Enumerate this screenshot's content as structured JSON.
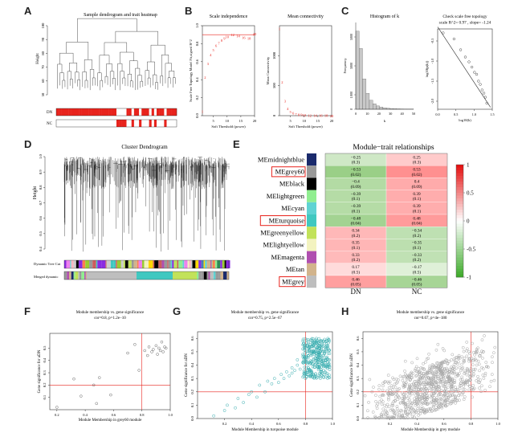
{
  "panel_labels": [
    "A",
    "B",
    "C",
    "D",
    "E",
    "F",
    "G",
    "H"
  ],
  "colors": {
    "red": "#e8231c",
    "green": "#6cb84b",
    "pink": "#f19999",
    "lightgreen": "#b7dea1",
    "teal": "#3aaeb0",
    "grey": "#8c8c8c",
    "black": "#111111"
  },
  "chart_data": [
    {
      "id": "A",
      "type": "dendrogram",
      "title": "Sample dendrogram and trait heatmap",
      "ylabel": "Height",
      "yticks": [
        "50",
        "60",
        "70",
        "80",
        "90",
        "100"
      ],
      "rows": [
        "DN",
        "NC"
      ],
      "dn_pattern": [
        1,
        1,
        1,
        1,
        1,
        1,
        1,
        1,
        1,
        1,
        1,
        1,
        1,
        1,
        1,
        1,
        1,
        1,
        1,
        1,
        1,
        1,
        1,
        1,
        0,
        0,
        0,
        0,
        1,
        1,
        0,
        1,
        1,
        0,
        1,
        1,
        1,
        0,
        1,
        0,
        1,
        1,
        1,
        0,
        1,
        1,
        1,
        1
      ]
    },
    {
      "id": "B1",
      "type": "scatter",
      "title": "Scale independence",
      "xlabel": "Soft Threshold (power)",
      "ylabel": "Scale Free Topology Model Fit,signed R^2",
      "xlim": [
        1,
        20
      ],
      "ylim": [
        0,
        1.0
      ],
      "xticks": [
        "5",
        "10",
        "15",
        "20"
      ],
      "yticks": [
        "0.0",
        "0.2",
        "0.4",
        "0.6",
        "0.8",
        "1.0"
      ],
      "cutoff": 0.9,
      "x": [
        1,
        2,
        3,
        4,
        5,
        6,
        7,
        8,
        9,
        10,
        12,
        14,
        16,
        18,
        20
      ],
      "y": [
        0.05,
        0.43,
        0.58,
        0.68,
        0.73,
        0.78,
        0.81,
        0.84,
        0.86,
        0.88,
        0.9,
        0.89,
        0.87,
        0.86,
        0.91
      ],
      "labels": [
        "1",
        "2",
        "3",
        "4",
        "5",
        "6",
        "7",
        "8",
        "9",
        "10",
        "12",
        "14",
        "16",
        "18",
        "20"
      ]
    },
    {
      "id": "B2",
      "type": "scatter",
      "title": "Mean connectivity",
      "xlabel": "Soft Threshold (power)",
      "ylabel": "Mean Connectivity",
      "xlim": [
        1,
        20
      ],
      "ylim": [
        0,
        1500
      ],
      "xticks": [
        "5",
        "10",
        "15",
        "20"
      ],
      "yticks": [
        "0",
        "500",
        "1000"
      ],
      "x": [
        1,
        2,
        3,
        4,
        5,
        6,
        7,
        8,
        9,
        10,
        12,
        14,
        16,
        18,
        20
      ],
      "y": [
        1450,
        560,
        250,
        120,
        70,
        45,
        30,
        22,
        17,
        13,
        9,
        7,
        5,
        4,
        3
      ],
      "labels": [
        "1",
        "2",
        "3",
        "4",
        "5",
        "6",
        "7",
        "8",
        "9",
        "10",
        "12",
        "14",
        "16",
        "18",
        "20"
      ]
    },
    {
      "id": "C1",
      "type": "bar",
      "title": "Histogram of k",
      "xlabel": "k",
      "ylabel": "Frequency",
      "ylim": [
        0,
        6000
      ],
      "xticks": [
        "0",
        "10",
        "20",
        "30",
        "40",
        "50"
      ],
      "yticks": [
        "0",
        "1000",
        "3000",
        "5000"
      ],
      "values": [
        5400,
        4200,
        2100,
        1100,
        620,
        380,
        230,
        150,
        100,
        70,
        50,
        40,
        30,
        25,
        20,
        15,
        12
      ]
    },
    {
      "id": "C2",
      "type": "scatter",
      "title": "Check scale free topology",
      "subtitle": "scale R^2= 0.97 , slope= -1.24",
      "xlabel": "log10(k)",
      "ylabel": "log10(p(k))",
      "xlim": [
        0.0,
        1.5
      ],
      "ylim": [
        -2.2,
        -0.2
      ],
      "xticks": [
        "0.0",
        "0.5",
        "1.0",
        "1.5"
      ],
      "yticks": [
        "-2.0",
        "-1.5",
        "-1.0",
        "-0.5"
      ],
      "x": [
        0.15,
        0.45,
        0.63,
        0.76,
        0.86,
        0.94,
        1.01,
        1.07,
        1.12,
        1.17,
        1.22,
        1.27,
        1.31,
        1.35
      ],
      "y": [
        -0.3,
        -0.45,
        -0.72,
        -0.9,
        -1.02,
        -1.15,
        -1.28,
        -1.33,
        -1.5,
        -1.58,
        -1.72,
        -1.8,
        -1.9,
        -2.05
      ]
    },
    {
      "id": "D",
      "type": "dendrogram",
      "title": "Cluster Dendrogram",
      "ylabel": "Height",
      "yticks": [
        "0.4",
        "0.5",
        "0.6",
        "0.7",
        "0.8",
        "0.9",
        "1.0"
      ],
      "rows": [
        "Dynamic Tree Cut",
        "Merged dynamic"
      ]
    },
    {
      "id": "E",
      "type": "heatmap",
      "title": "Module−trait relationships",
      "columns": [
        "DN",
        "NC"
      ],
      "legend_ticks": [
        "1",
        "0.5",
        "0",
        "-0.5",
        "-1"
      ],
      "highlighted": [
        "MEgrey60",
        "MEturquoise",
        "MEgrey"
      ],
      "rows": [
        {
          "name": "MEmidnightblue",
          "swatch": "#1a2a6c",
          "dn": "−0.25",
          "dn_p": "(0.3)",
          "nc": "0.25",
          "nc_p": "(0.3)",
          "dn_v": -0.25,
          "nc_v": 0.25
        },
        {
          "name": "MEgrey60",
          "swatch": "#999999",
          "dn": "−0.53",
          "dn_p": "(0.02)",
          "nc": "0.53",
          "nc_p": "(0.02)",
          "dn_v": -0.53,
          "nc_v": 0.53
        },
        {
          "name": "MEblack",
          "swatch": "#000000",
          "dn": "−0.4",
          "dn_p": "(0.09)",
          "nc": "0.4",
          "nc_p": "(0.09)",
          "dn_v": -0.4,
          "nc_v": 0.4
        },
        {
          "name": "MElightgreen",
          "swatch": "#90ee90",
          "dn": "−0.39",
          "dn_p": "(0.1)",
          "nc": "0.39",
          "nc_p": "(0.1)",
          "dn_v": -0.39,
          "nc_v": 0.39
        },
        {
          "name": "MEcyan",
          "swatch": "#5fd3d3",
          "dn": "−0.39",
          "dn_p": "(0.1)",
          "nc": "0.39",
          "nc_p": "(0.1)",
          "dn_v": -0.39,
          "nc_v": 0.39
        },
        {
          "name": "MEturquoise",
          "swatch": "#40c8c0",
          "dn": "−0.48",
          "dn_p": "(0.04)",
          "nc": "0.48",
          "nc_p": "(0.04)",
          "dn_v": -0.48,
          "nc_v": 0.48
        },
        {
          "name": "MEgreenyellow",
          "swatch": "#c2e25a",
          "dn": "0.34",
          "dn_p": "(0.2)",
          "nc": "−0.34",
          "nc_p": "(0.2)",
          "dn_v": 0.34,
          "nc_v": -0.34
        },
        {
          "name": "MElightyellow",
          "swatch": "#f3f3c0",
          "dn": "0.35",
          "dn_p": "(0.1)",
          "nc": "−0.35",
          "nc_p": "(0.1)",
          "dn_v": 0.35,
          "nc_v": -0.35
        },
        {
          "name": "MEmagenta",
          "swatch": "#b04fb0",
          "dn": "0.33",
          "dn_p": "(0.2)",
          "nc": "−0.33",
          "nc_p": "(0.2)",
          "dn_v": 0.33,
          "nc_v": -0.33
        },
        {
          "name": "MEtan",
          "swatch": "#d2b48c",
          "dn": "0.17",
          "dn_p": "(0.5)",
          "nc": "−0.17",
          "nc_p": "(0.5)",
          "dn_v": 0.17,
          "nc_v": -0.17
        },
        {
          "name": "MEgrey",
          "swatch": "#bebebe",
          "dn": "0.46",
          "dn_p": "(0.05)",
          "nc": "−0.46",
          "nc_p": "(0.05)",
          "dn_v": 0.46,
          "nc_v": -0.46
        }
      ]
    },
    {
      "id": "F",
      "type": "scatter",
      "title": "Module membership vs. gene significance",
      "subtitle": "cor=0.8, p=1.2e−10",
      "xlabel": "Module Membership in grey60 module",
      "ylabel": "Gene significance for aDN",
      "xlim": [
        0.15,
        1.0
      ],
      "ylim": [
        0.0,
        0.62
      ],
      "xticks": [
        "0.2",
        "0.4",
        "0.6",
        "0.8",
        "1.0"
      ],
      "yticks": [
        "0.1",
        "0.2",
        "0.3",
        "0.4",
        "0.5"
      ],
      "vline": 0.8,
      "hline": 0.2,
      "x": [
        0.2,
        0.32,
        0.37,
        0.46,
        0.48,
        0.5,
        0.58,
        0.7,
        0.75,
        0.78,
        0.82,
        0.84,
        0.85,
        0.87,
        0.88,
        0.9,
        0.91,
        0.92,
        0.93,
        0.94,
        0.95,
        0.96,
        0.97
      ],
      "y": [
        0.02,
        0.25,
        0.11,
        0.2,
        0.05,
        0.26,
        0.12,
        0.46,
        0.53,
        0.32,
        0.48,
        0.44,
        0.51,
        0.47,
        0.49,
        0.52,
        0.45,
        0.5,
        0.48,
        0.55,
        0.47,
        0.51,
        0.5
      ]
    },
    {
      "id": "G",
      "type": "scatter",
      "title": "Module membership vs. gene significance",
      "subtitle": "cor=0.75, p=2.5e−67",
      "xlabel": "Module Membership in turquoise module",
      "ylabel": "Gene significance for aDN",
      "xlim": [
        0.0,
        1.0
      ],
      "ylim": [
        0.0,
        0.65
      ],
      "xticks": [
        "0.2",
        "0.4",
        "0.6",
        "0.8",
        "1.0"
      ],
      "yticks": [
        "0.0",
        "0.1",
        "0.2",
        "0.3",
        "0.4",
        "0.5",
        "0.6"
      ],
      "vline": 0.8,
      "hline": 0.2,
      "x": [
        0.12,
        0.2,
        0.22,
        0.28,
        0.3,
        0.34,
        0.38,
        0.4,
        0.44,
        0.46,
        0.5,
        0.52,
        0.55,
        0.57,
        0.6,
        0.62,
        0.64,
        0.66,
        0.68,
        0.7,
        0.72,
        0.74,
        0.76,
        0.78,
        0.8,
        0.82,
        0.84,
        0.86,
        0.88,
        0.9,
        0.92,
        0.94,
        0.96,
        0.82,
        0.85,
        0.87,
        0.89,
        0.91,
        0.93,
        0.95,
        0.8,
        0.84,
        0.88,
        0.92,
        0.96,
        0.78,
        0.74,
        0.7
      ],
      "y": [
        0.02,
        0.06,
        0.1,
        0.08,
        0.15,
        0.12,
        0.18,
        0.2,
        0.16,
        0.25,
        0.2,
        0.28,
        0.26,
        0.3,
        0.27,
        0.33,
        0.3,
        0.35,
        0.32,
        0.38,
        0.36,
        0.4,
        0.37,
        0.42,
        0.45,
        0.47,
        0.5,
        0.44,
        0.52,
        0.48,
        0.55,
        0.5,
        0.46,
        0.38,
        0.41,
        0.56,
        0.43,
        0.58,
        0.4,
        0.52,
        0.3,
        0.35,
        0.6,
        0.45,
        0.54,
        0.48,
        0.44,
        0.34
      ]
    },
    {
      "id": "H",
      "type": "scatter",
      "title": "Module membership vs. gene significance",
      "subtitle": "cor=0.67, p=4e−180",
      "xlabel": "Module Membership in grey module",
      "ylabel": "Gene significance for aDN",
      "xlim": [
        0.0,
        1.0
      ],
      "ylim": [
        0.0,
        0.65
      ],
      "xticks": [
        "0.2",
        "0.4",
        "0.6",
        "0.8",
        "1.0"
      ],
      "yticks": [
        "0.0",
        "0.1",
        "0.2",
        "0.3",
        "0.4",
        "0.5",
        "0.6"
      ],
      "vline": 0.8,
      "hline": 0.2
    }
  ]
}
